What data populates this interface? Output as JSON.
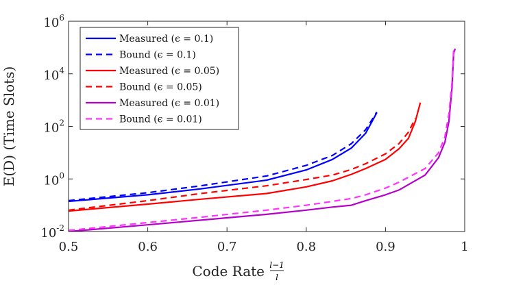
{
  "chart_data": {
    "type": "line",
    "xlabel": "Code Rate",
    "xlabel_frac_num": "l−1",
    "xlabel_frac_den": "l",
    "ylabel": "E(D) (Time Slots)",
    "yscale": "log",
    "xlim": [
      0.5,
      1.0
    ],
    "ylim": [
      0.01,
      1000000
    ],
    "xticks": [
      "0.5",
      "0.6",
      "0.7",
      "0.8",
      "0.9",
      "1"
    ],
    "yticks": [
      {
        "base": "10",
        "exp": "-2",
        "value": 0.01
      },
      {
        "base": "10",
        "exp": "0",
        "value": 1
      },
      {
        "base": "10",
        "exp": "2",
        "value": 100
      },
      {
        "base": "10",
        "exp": "4",
        "value": 10000
      },
      {
        "base": "10",
        "exp": "6",
        "value": 1000000
      }
    ],
    "legend_position": "top-left",
    "series": [
      {
        "name": "Measured (ϵ = 0.1)",
        "color": "#0000ff",
        "dash": "solid",
        "x": [
          0.5,
          0.6,
          0.667,
          0.75,
          0.8,
          0.833,
          0.857,
          0.875,
          0.889
        ],
        "y": [
          0.14,
          0.25,
          0.42,
          0.9,
          2.2,
          5.5,
          15,
          55,
          330
        ]
      },
      {
        "name": "Bound (ϵ = 0.1)",
        "color": "#0000ff",
        "dash": "dashed",
        "x": [
          0.5,
          0.6,
          0.667,
          0.75,
          0.8,
          0.833,
          0.857,
          0.875,
          0.889
        ],
        "y": [
          0.15,
          0.3,
          0.55,
          1.3,
          3.3,
          7.8,
          22,
          75,
          350
        ]
      },
      {
        "name": "Measured (ϵ = 0.05)",
        "color": "#ff0000",
        "dash": "solid",
        "x": [
          0.5,
          0.6,
          0.667,
          0.75,
          0.8,
          0.833,
          0.857,
          0.875,
          0.9,
          0.917,
          0.929,
          0.9375,
          0.944
        ],
        "y": [
          0.06,
          0.11,
          0.17,
          0.28,
          0.5,
          0.85,
          1.5,
          2.5,
          5.5,
          14,
          35,
          150,
          800
        ]
      },
      {
        "name": "Bound (ϵ = 0.05)",
        "color": "#ff0000",
        "dash": "dashed",
        "x": [
          0.5,
          0.6,
          0.667,
          0.75,
          0.8,
          0.833,
          0.857,
          0.875,
          0.9,
          0.917,
          0.929,
          0.9375
        ],
        "y": [
          0.065,
          0.15,
          0.28,
          0.55,
          0.95,
          1.4,
          2.3,
          3.8,
          9,
          22,
          60,
          200
        ]
      },
      {
        "name": "Measured (ϵ = 0.01)",
        "color": "#b400c8",
        "dash": "solid",
        "x": [
          0.5,
          0.6,
          0.667,
          0.75,
          0.8,
          0.833,
          0.857,
          0.875,
          0.9,
          0.917,
          0.95,
          0.967,
          0.975,
          0.98,
          0.984,
          0.986,
          0.988
        ],
        "y": [
          0.01,
          0.018,
          0.027,
          0.045,
          0.065,
          0.085,
          0.1,
          0.15,
          0.25,
          0.38,
          1.4,
          6.5,
          25,
          150,
          3000,
          60000,
          90000
        ]
      },
      {
        "name": "Bound (ϵ = 0.01)",
        "color": "#ff33ff",
        "dash": "dashed",
        "x": [
          0.5,
          0.6,
          0.667,
          0.75,
          0.8,
          0.833,
          0.857,
          0.875,
          0.9,
          0.917,
          0.95,
          0.967,
          0.975,
          0.98,
          0.984,
          0.986
        ],
        "y": [
          0.011,
          0.022,
          0.035,
          0.065,
          0.1,
          0.14,
          0.18,
          0.25,
          0.45,
          0.75,
          2.5,
          10,
          40,
          300,
          5000,
          80000
        ]
      }
    ]
  }
}
